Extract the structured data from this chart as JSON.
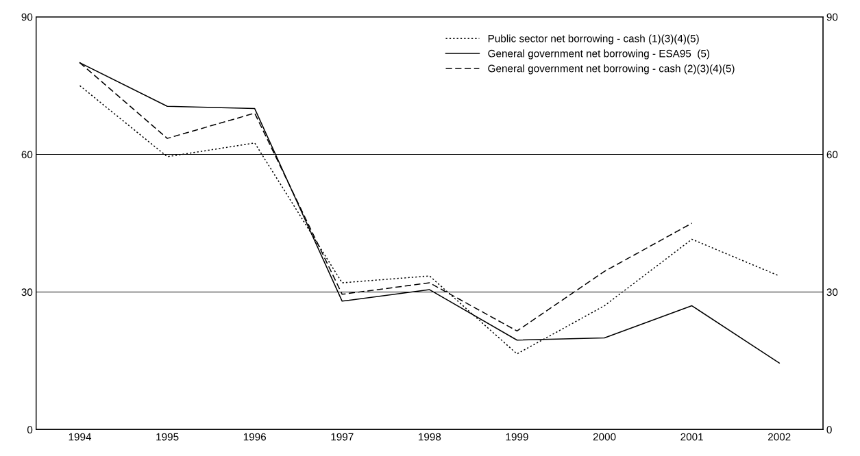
{
  "chart_data": {
    "type": "line",
    "categories": [
      "1994",
      "1995",
      "1996",
      "1997",
      "1998",
      "1999",
      "2000",
      "2001",
      "2002"
    ],
    "series": [
      {
        "name": "Public sector net borrowing - cash (1)(3)(4)(5)",
        "color": "#000000",
        "line_style": "dotted",
        "values": [
          75,
          59.5,
          62.5,
          32,
          33.5,
          16.5,
          27,
          41.5,
          33.5
        ]
      },
      {
        "name": "General government net borrowing - ESA95  (5)",
        "color": "#000000",
        "line_style": "solid",
        "values": [
          80,
          70.5,
          70,
          28,
          30.5,
          19.5,
          20,
          27,
          14.5
        ]
      },
      {
        "name": "General government net borrowing - cash (2)(3)(4)(5)",
        "color": "#000000",
        "line_style": "dashed",
        "values": [
          80,
          63.5,
          69,
          29.5,
          32,
          21.5,
          34.5,
          45,
          null
        ]
      }
    ],
    "ylim": [
      0,
      90
    ],
    "yticks": [
      0,
      30,
      60,
      90
    ],
    "y2lim": [
      0,
      90
    ],
    "y2ticks": [
      0,
      30,
      60,
      90
    ],
    "grid": "y",
    "legend": "top right",
    "marker": "none"
  }
}
